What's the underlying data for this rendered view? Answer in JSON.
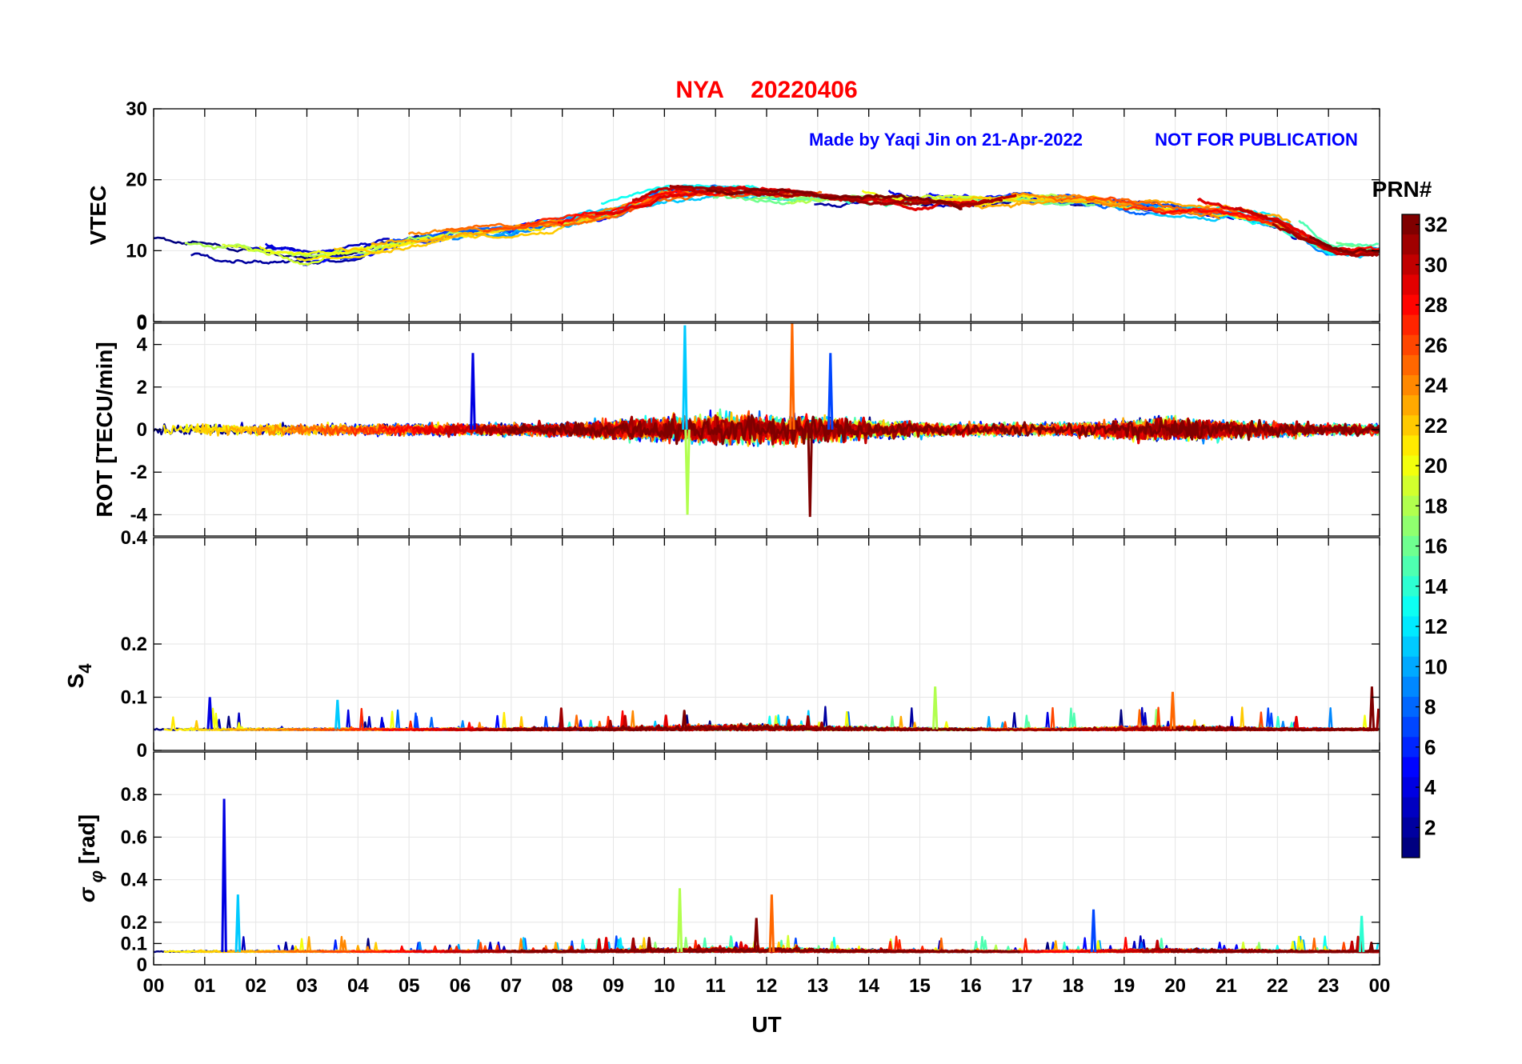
{
  "title": {
    "station": "NYA",
    "date": "20220406"
  },
  "annotation": {
    "made_by": "Made by Yaqi Jin on 21-Apr-2022",
    "notice": "NOT FOR PUBLICATION"
  },
  "colorbar": {
    "title": "PRN#",
    "ticks": [
      "2",
      "4",
      "6",
      "8",
      "10",
      "12",
      "14",
      "16",
      "18",
      "20",
      "22",
      "24",
      "26",
      "28",
      "30",
      "32"
    ],
    "range": [
      1,
      32
    ],
    "colormap": "jet"
  },
  "chart_data": {
    "type": "line",
    "xlabel": "UT",
    "x_unit": "hours",
    "xlim": [
      0,
      24
    ],
    "x_ticks": [
      "00",
      "01",
      "02",
      "03",
      "04",
      "05",
      "06",
      "07",
      "08",
      "09",
      "10",
      "11",
      "12",
      "13",
      "14",
      "15",
      "16",
      "17",
      "18",
      "19",
      "20",
      "21",
      "22",
      "23",
      "00"
    ],
    "grid": true,
    "panels": [
      {
        "name": "vtec",
        "ylabel": "VTEC",
        "ylim": [
          0,
          30
        ],
        "y_ticks": [
          "0",
          "10",
          "20",
          "30"
        ],
        "series_envelope": [
          {
            "ut": 0,
            "value": 11
          },
          {
            "ut": 1,
            "value": 10.5
          },
          {
            "ut": 2,
            "value": 10
          },
          {
            "ut": 3,
            "value": 9
          },
          {
            "ut": 4,
            "value": 10
          },
          {
            "ut": 5,
            "value": 11.5
          },
          {
            "ut": 6,
            "value": 12.5
          },
          {
            "ut": 7,
            "value": 13
          },
          {
            "ut": 8,
            "value": 14
          },
          {
            "ut": 9,
            "value": 15.5
          },
          {
            "ut": 10,
            "value": 18
          },
          {
            "ut": 11,
            "value": 18.5
          },
          {
            "ut": 12,
            "value": 18
          },
          {
            "ut": 13,
            "value": 18
          },
          {
            "ut": 14,
            "value": 17.5
          },
          {
            "ut": 15,
            "value": 17
          },
          {
            "ut": 16,
            "value": 17
          },
          {
            "ut": 17,
            "value": 17.5
          },
          {
            "ut": 18,
            "value": 17
          },
          {
            "ut": 19,
            "value": 16.5
          },
          {
            "ut": 20,
            "value": 16
          },
          {
            "ut": 21,
            "value": 15.5
          },
          {
            "ut": 22,
            "value": 14
          },
          {
            "ut": 23,
            "value": 10
          },
          {
            "ut": 24,
            "value": 10
          }
        ]
      },
      {
        "name": "rot",
        "ylabel": "ROT [TECU/min]",
        "ylim": [
          -5,
          5
        ],
        "y_ticks": [
          "-4",
          "-2",
          "0",
          "2",
          "4"
        ],
        "y_tick_values": [
          -4,
          -2,
          0,
          2,
          4
        ],
        "top_label": "0",
        "peaks": [
          {
            "ut": 6.25,
            "value": 3.6
          },
          {
            "ut": 10.4,
            "value": 4.9
          },
          {
            "ut": 10.45,
            "value": -4.0
          },
          {
            "ut": 12.5,
            "value": 5.0
          },
          {
            "ut": 12.85,
            "value": -4.1
          },
          {
            "ut": 13.25,
            "value": 3.6
          }
        ]
      },
      {
        "name": "s4",
        "ylabel": "S4",
        "ylim": [
          0,
          0.4
        ],
        "y_ticks": [
          "0",
          "0.1",
          "0.2"
        ],
        "y_tick_values": [
          0,
          0.1,
          0.2
        ],
        "top_label": "0.4",
        "peaks": [
          {
            "ut": 1.1,
            "value": 0.1
          },
          {
            "ut": 3.6,
            "value": 0.095
          },
          {
            "ut": 15.3,
            "value": 0.12
          },
          {
            "ut": 19.95,
            "value": 0.11
          },
          {
            "ut": 23.85,
            "value": 0.12
          }
        ]
      },
      {
        "name": "sigma_phi",
        "ylabel_main": "σ",
        "ylabel_sub": "φ",
        "ylabel_unit": "[rad]",
        "ylim": [
          0,
          1
        ],
        "y_ticks": [
          "0",
          "0.1",
          "0.2",
          "0.4",
          "0.6",
          "0.8"
        ],
        "y_tick_values": [
          0,
          0.1,
          0.2,
          0.4,
          0.6,
          0.8
        ],
        "peaks": [
          {
            "ut": 1.38,
            "value": 0.78
          },
          {
            "ut": 1.65,
            "value": 0.33
          },
          {
            "ut": 10.3,
            "value": 0.36
          },
          {
            "ut": 12.1,
            "value": 0.33
          },
          {
            "ut": 11.8,
            "value": 0.22
          },
          {
            "ut": 18.4,
            "value": 0.26
          },
          {
            "ut": 23.65,
            "value": 0.23
          }
        ]
      }
    ]
  }
}
